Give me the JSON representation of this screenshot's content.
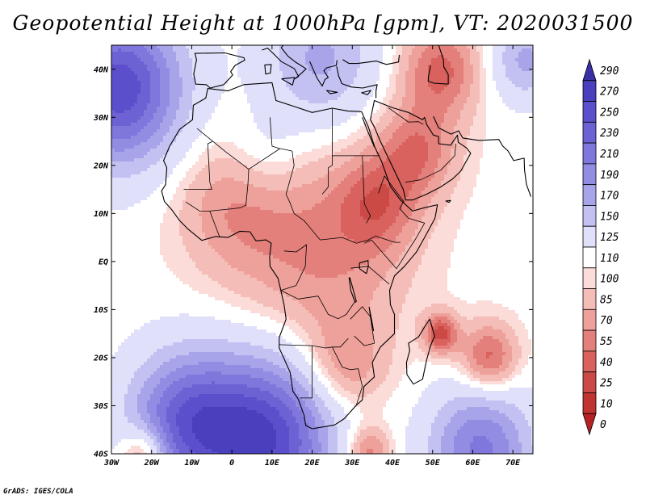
{
  "title": "Geopotential Height at 1000hPa [gpm], VT: 2020031500",
  "credit": "GrADS: IGES/COLA",
  "map": {
    "lon_range": [
      -30,
      75
    ],
    "lat_range": [
      -40,
      45
    ],
    "lon_ticks": [
      {
        "value": -30,
        "label": "30W"
      },
      {
        "value": -20,
        "label": "20W"
      },
      {
        "value": -10,
        "label": "10W"
      },
      {
        "value": 0,
        "label": "0"
      },
      {
        "value": 10,
        "label": "10E"
      },
      {
        "value": 20,
        "label": "20E"
      },
      {
        "value": 30,
        "label": "30E"
      },
      {
        "value": 40,
        "label": "40E"
      },
      {
        "value": 50,
        "label": "50E"
      },
      {
        "value": 60,
        "label": "60E"
      },
      {
        "value": 70,
        "label": "70E"
      }
    ],
    "lat_ticks": [
      {
        "value": 40,
        "label": "40N"
      },
      {
        "value": 30,
        "label": "30N"
      },
      {
        "value": 20,
        "label": "20N"
      },
      {
        "value": 10,
        "label": "10N"
      },
      {
        "value": 0,
        "label": "EQ"
      },
      {
        "value": -10,
        "label": "10S"
      },
      {
        "value": -20,
        "label": "20S"
      },
      {
        "value": -30,
        "label": "30S"
      },
      {
        "value": -40,
        "label": "40S"
      }
    ],
    "field_centers": [
      {
        "lon": -28,
        "lat": 36,
        "value": 265,
        "spread": 11
      },
      {
        "lon": 8,
        "lat": -37,
        "value": 270,
        "spread": 12
      },
      {
        "lon": -12,
        "lat": -33,
        "value": 225,
        "spread": 10
      },
      {
        "lon": 62,
        "lat": -39,
        "value": 215,
        "spread": 9
      },
      {
        "lon": 22,
        "lat": 42,
        "value": 175,
        "spread": 10
      },
      {
        "lon": 73,
        "lat": 42,
        "value": 175,
        "spread": 6
      },
      {
        "lon": 52,
        "lat": -15,
        "value": 35,
        "spread": 3
      },
      {
        "lon": 64,
        "lat": -20,
        "value": 45,
        "spread": 5
      },
      {
        "lon": 52,
        "lat": 40,
        "value": 50,
        "spread": 7
      },
      {
        "lon": 46,
        "lat": 23,
        "value": 60,
        "spread": 7
      },
      {
        "lon": 22,
        "lat": 2,
        "value": 68,
        "spread": 15
      },
      {
        "lon": 36,
        "lat": 12,
        "value": 65,
        "spread": 7
      },
      {
        "lon": 0,
        "lat": 12,
        "value": 78,
        "spread": 10
      },
      {
        "lon": 28,
        "lat": -22,
        "value": 72,
        "spread": 7
      },
      {
        "lon": -22,
        "lat": -40,
        "value": 45,
        "spread": 4
      },
      {
        "lon": 34,
        "lat": -40,
        "value": 55,
        "spread": 4
      },
      {
        "lon": 8,
        "lat": 22,
        "value": 140,
        "spread": 7
      }
    ],
    "background_value": 115
  },
  "colorbar": {
    "levels": [
      "290",
      "270",
      "250",
      "230",
      "210",
      "190",
      "170",
      "150",
      "125",
      "110",
      "100",
      "85",
      "70",
      "55",
      "40",
      "25",
      "10",
      "0"
    ],
    "colors": [
      "#3b2fa6",
      "#4a3fbc",
      "#5b4fcb",
      "#6c62d4",
      "#7f77dc",
      "#928ce3",
      "#a8a4ea",
      "#c3c1f2",
      "#e0e0fa",
      "#ffffff",
      "#fbdcd8",
      "#f5bdb8",
      "#eea19b",
      "#e4807b",
      "#d9625e",
      "#cc4a46",
      "#bf3431",
      "#b52224"
    ]
  }
}
